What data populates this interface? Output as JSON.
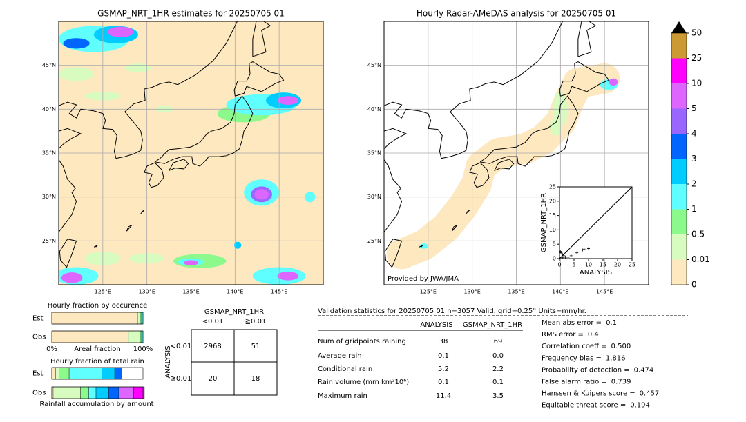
{
  "maps": [
    {
      "title": "GSMAP_NRT_1HR estimates for 20250705 01",
      "xlim": [
        120,
        150
      ],
      "ylim": [
        20,
        50
      ],
      "xticks": [
        {
          "value": 125,
          "label": "125°E"
        },
        {
          "value": 130,
          "label": "130°E"
        },
        {
          "value": 135,
          "label": "135°E"
        },
        {
          "value": 140,
          "label": "140°E"
        },
        {
          "value": 145,
          "label": "145°E"
        }
      ],
      "yticks": [
        {
          "value": 25,
          "label": "25°N"
        },
        {
          "value": 30,
          "label": "30°N"
        },
        {
          "value": 35,
          "label": "35°N"
        },
        {
          "value": 40,
          "label": "40°N"
        },
        {
          "value": 45,
          "label": "45°N"
        }
      ]
    },
    {
      "title": "Hourly Radar-AMeDAS analysis for 20250705 01",
      "xlim": [
        120,
        150
      ],
      "ylim": [
        20,
        50
      ],
      "xticks": [
        {
          "value": 125,
          "label": "125°E"
        },
        {
          "value": 130,
          "label": "130°E"
        },
        {
          "value": 135,
          "label": "135°E"
        },
        {
          "value": 140,
          "label": "140°E"
        },
        {
          "value": 145,
          "label": "145°E"
        }
      ],
      "yticks": [
        {
          "value": 25,
          "label": "25°N"
        },
        {
          "value": 30,
          "label": "30°N"
        },
        {
          "value": 35,
          "label": "35°N"
        },
        {
          "value": 40,
          "label": "40°N"
        },
        {
          "value": 45,
          "label": "45°N"
        }
      ],
      "credit": "Provided by JWA/JMA"
    }
  ],
  "colorbar": {
    "ticks": [
      0,
      0.01,
      0.5,
      1,
      2,
      3,
      4,
      5,
      10,
      25,
      50
    ],
    "colors": [
      "#fde8c0",
      "#d8fcc0",
      "#8cf98c",
      "#60ffff",
      "#00ccff",
      "#0066ff",
      "#9966ff",
      "#dd66ff",
      "#ff00ff",
      "#cc9933"
    ],
    "extend_color": "#000000"
  },
  "scatter": {
    "xlabel": "ANALYSIS",
    "ylabel": "GSMAP_NRT_1HR",
    "xlim": [
      0,
      25
    ],
    "ylim": [
      0,
      25
    ],
    "xticks": [
      0,
      5,
      10,
      15,
      20,
      25
    ],
    "yticks": [
      0,
      5,
      10,
      15,
      20,
      25
    ],
    "x": [
      0.3,
      0.5,
      1,
      1.5,
      2,
      3,
      1,
      4,
      6,
      8,
      8.5,
      10
    ],
    "y": [
      2.5,
      2,
      1.5,
      1,
      0.5,
      0.5,
      0.3,
      1,
      2,
      3,
      3.3,
      3.5
    ]
  },
  "occurrence": {
    "title": "Hourly fraction by occurence",
    "xlabel": "Areal fraction",
    "xticks": [
      {
        "value": 0,
        "label": "0%"
      },
      {
        "value": 100,
        "label": "100%"
      }
    ],
    "rows": [
      {
        "label": "Est",
        "values": [
          94,
          3,
          1.5,
          1.5
        ]
      },
      {
        "label": "Obs",
        "values": [
          84,
          13,
          1.5,
          1.5
        ]
      }
    ]
  },
  "total": {
    "title": "Hourly fraction of total rain",
    "xlabel": "Rainfall accumulation by amount",
    "rows": [
      {
        "label": "Est",
        "values": [
          4,
          4,
          11,
          36,
          14,
          8,
          0,
          0,
          0
        ]
      },
      {
        "label": "Obs",
        "values": [
          1.5,
          30,
          9,
          8,
          14,
          11,
          0,
          16,
          12
        ]
      }
    ]
  },
  "contingency": {
    "title": "GSMAP_NRT_1HR",
    "columns": [
      "<0.01",
      "≧0.01"
    ],
    "row_title": "ANALYSIS",
    "rows": [
      "<0.01",
      "≧0.01"
    ],
    "cells": [
      [
        "2968",
        "51"
      ],
      [
        "20",
        "18"
      ]
    ]
  },
  "stats": {
    "title": "Validation statistics for 20250705 01  n=3057 Valid. grid=0.25° Units=mm/hr.",
    "columns": [
      "ANALYSIS",
      "GSMAP_NRT_1HR"
    ],
    "rows": [
      {
        "label": "Num of gridpoints raining",
        "values": [
          "38",
          "69"
        ]
      },
      {
        "label": "Average rain",
        "values": [
          "0.1",
          "0.0"
        ]
      },
      {
        "label": "Conditional rain",
        "values": [
          "5.2",
          "2.2"
        ]
      },
      {
        "label": "Rain volume (mm km²10⁶)",
        "values": [
          "0.1",
          "0.1"
        ]
      },
      {
        "label": "Maximum rain",
        "values": [
          "11.4",
          "3.5"
        ]
      }
    ],
    "scores": [
      {
        "label": "Mean abs error =",
        "value": "0.1"
      },
      {
        "label": "RMS error =",
        "value": "0.4"
      },
      {
        "label": "Correlation coeff =",
        "value": "0.500"
      },
      {
        "label": "Frequency bias =",
        "value": "1.816"
      },
      {
        "label": "Probability of detection =",
        "value": "0.474"
      },
      {
        "label": "False alarm ratio =",
        "value": "0.739"
      },
      {
        "label": "Hanssen & Kuipers score =",
        "value": "0.457"
      },
      {
        "label": "Equitable threat score =",
        "value": "0.194"
      }
    ]
  }
}
